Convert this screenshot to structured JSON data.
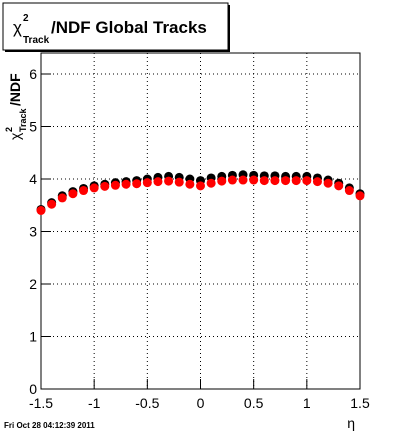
{
  "chart_data": {
    "type": "scatter",
    "title": {
      "symbol": "χ",
      "sup": "2",
      "sub": "Track",
      "rest": "/NDF  Global Tracks"
    },
    "y_label": {
      "symbol": "χ",
      "sup": "2",
      "sub": "Track",
      "rest": "/NDF"
    },
    "x_label": "η",
    "footer": "Fri Oct 28 04:12:39 2011",
    "x": [
      -1.5,
      -1.4,
      -1.3,
      -1.2,
      -1.1,
      -1.0,
      -0.9,
      -0.8,
      -0.7,
      -0.6,
      -0.5,
      -0.4,
      -0.3,
      -0.2,
      -0.1,
      0,
      0.1,
      0.2,
      0.3,
      0.4,
      0.5,
      0.6,
      0.7,
      0.8,
      0.9,
      1.0,
      1.1,
      1.2,
      1.3,
      1.4,
      1.5
    ],
    "series": [
      {
        "color": "#000000",
        "values": [
          3.42,
          3.55,
          3.68,
          3.76,
          3.82,
          3.87,
          3.9,
          3.93,
          3.95,
          3.97,
          4.0,
          4.03,
          4.05,
          4.03,
          4.0,
          3.97,
          4.02,
          4.05,
          4.07,
          4.08,
          4.07,
          4.06,
          4.06,
          4.05,
          4.05,
          4.05,
          4.02,
          3.98,
          3.92,
          3.83,
          3.72
        ]
      },
      {
        "color": "#ff0000",
        "values": [
          3.4,
          3.52,
          3.64,
          3.72,
          3.78,
          3.83,
          3.86,
          3.88,
          3.9,
          3.91,
          3.93,
          3.95,
          3.96,
          3.94,
          3.9,
          3.87,
          3.92,
          3.96,
          3.98,
          3.98,
          3.98,
          3.97,
          3.97,
          3.97,
          3.97,
          3.97,
          3.95,
          3.92,
          3.87,
          3.78,
          3.68
        ]
      }
    ],
    "xlim": [
      -1.5,
      1.5
    ],
    "xticks": [
      -1.5,
      -1,
      -0.5,
      0,
      0.5,
      1,
      1.5
    ],
    "ylim": [
      0,
      6.4
    ],
    "yticks": [
      0,
      1,
      2,
      3,
      4,
      5,
      6
    ],
    "grid": true
  }
}
